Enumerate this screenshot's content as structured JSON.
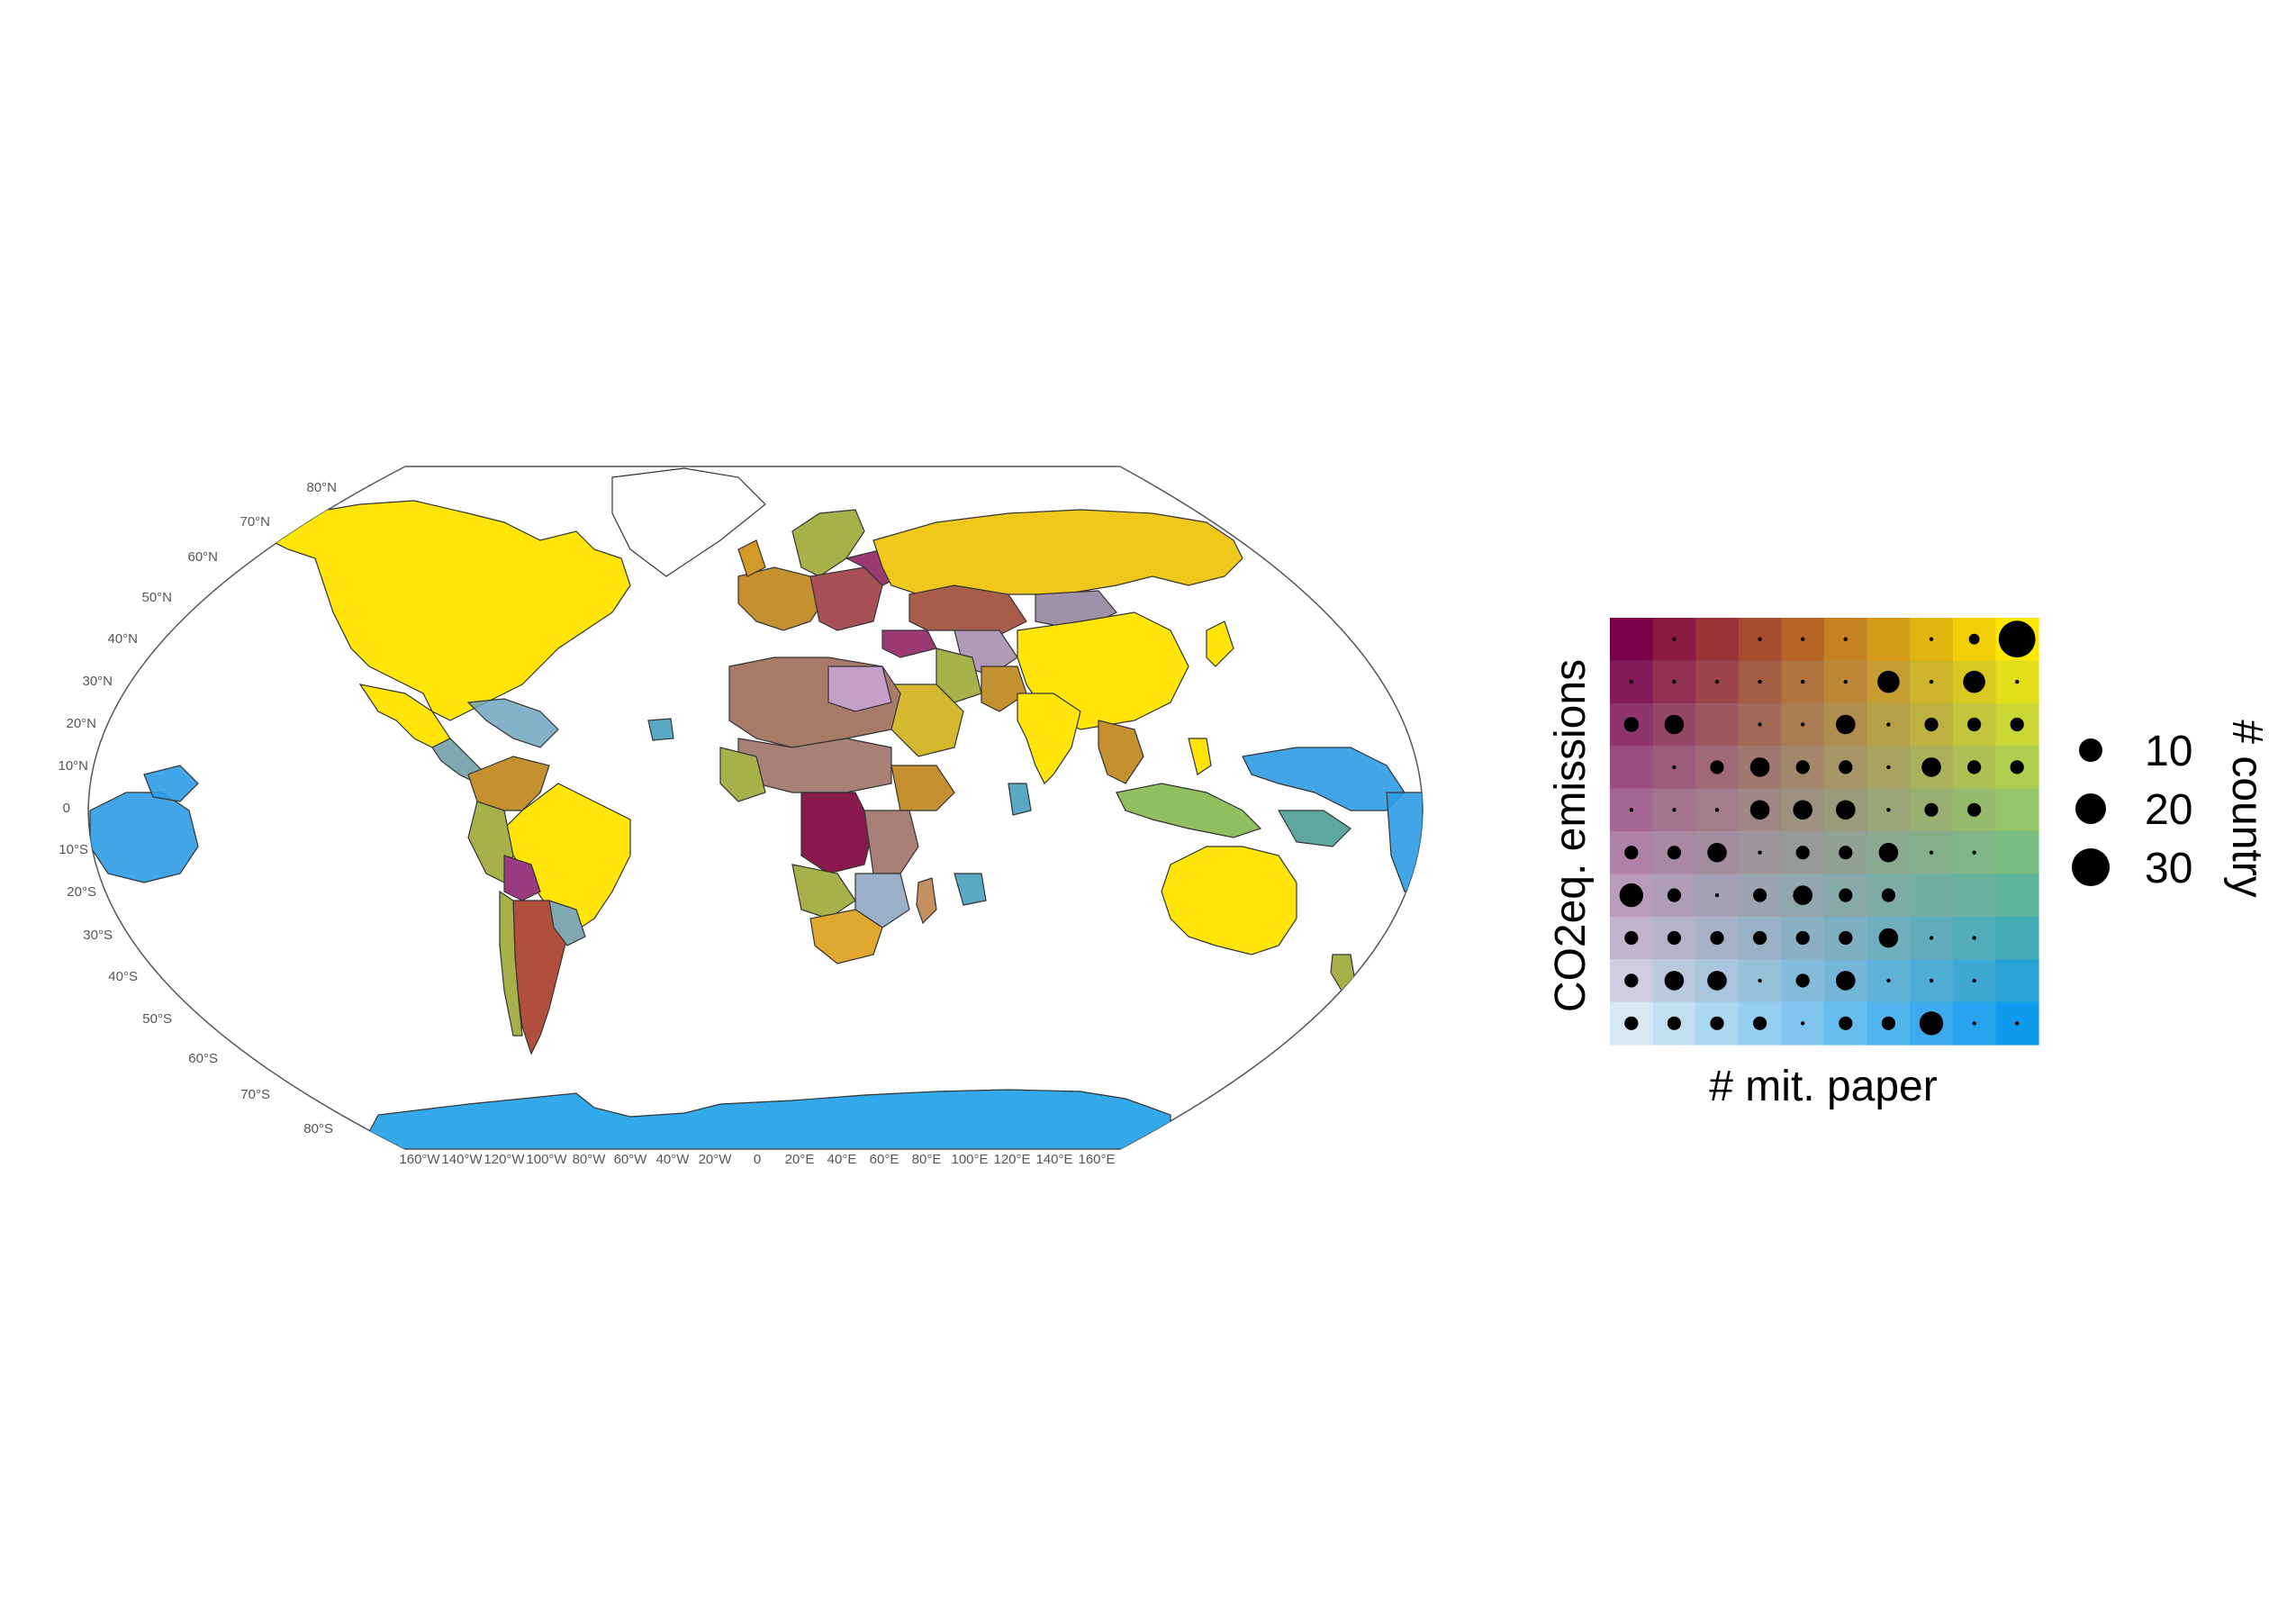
{
  "map": {
    "latitude_labels": [
      "80°N",
      "70°N",
      "60°N",
      "50°N",
      "40°N",
      "30°N",
      "20°N",
      "10°N",
      "0",
      "10°S",
      "20°S",
      "30°S",
      "40°S",
      "50°S",
      "60°S",
      "70°S",
      "80°S"
    ],
    "longitude_labels": [
      "160°W",
      "140°W",
      "120°W",
      "100°W",
      "80°W",
      "60°W",
      "40°W",
      "20°W",
      "0",
      "20°E",
      "40°E",
      "60°E",
      "80°E",
      "100°E",
      "120°E",
      "140°E",
      "160°E"
    ],
    "projection": "Robinson",
    "ocean_color": "#ffffff",
    "antarctica_color": "#33a9ea",
    "regions": [
      {
        "name": "North America",
        "color": "#ffe50a"
      },
      {
        "name": "Greenland",
        "color": "#ffffff"
      },
      {
        "name": "Russia",
        "color": "#f0c81c"
      },
      {
        "name": "China",
        "color": "#ffe50a"
      },
      {
        "name": "India",
        "color": "#ffe50a"
      },
      {
        "name": "Brazil",
        "color": "#ffe50a"
      },
      {
        "name": "Australia",
        "color": "#ffe50a"
      },
      {
        "name": "Argentina",
        "color": "#b24e3c"
      },
      {
        "name": "Kazakhstan",
        "color": "#a85c4a"
      },
      {
        "name": "DR Congo",
        "color": "#8a1a4e"
      },
      {
        "name": "Pacific Islands",
        "color": "#2c9be6"
      },
      {
        "name": "Indonesia",
        "color": "#8fbf5e"
      }
    ]
  },
  "legend": {
    "x_label": "# mit. paper",
    "y_label": "CO2eq. emissions",
    "size_title": "# country",
    "size_values": [
      10,
      20,
      30
    ],
    "corner_colors": {
      "top_left": "#7b0047",
      "top_right": "#ffe800",
      "bottom_left": "#d8e8f3",
      "bottom_right": "#0f9aec"
    }
  },
  "chart_data": {
    "type": "heatmap",
    "x_label": "# mit. paper",
    "y_label": "CO2eq. emissions",
    "size_title": "# country",
    "grid": [
      10,
      10
    ],
    "point_counts_rows_top_to_bottom": [
      [
        0,
        1,
        0,
        1,
        1,
        1,
        0,
        1,
        3,
        36
      ],
      [
        1,
        1,
        1,
        1,
        1,
        1,
        13,
        1,
        13,
        1
      ],
      [
        6,
        10,
        0,
        1,
        1,
        10,
        1,
        5,
        5,
        5
      ],
      [
        0,
        1,
        5,
        10,
        5,
        5,
        1,
        10,
        5,
        5
      ],
      [
        1,
        1,
        1,
        10,
        10,
        10,
        1,
        5,
        5,
        0
      ],
      [
        5,
        5,
        10,
        1,
        5,
        5,
        10,
        1,
        1,
        0
      ],
      [
        15,
        5,
        1,
        5,
        10,
        5,
        5,
        0,
        0,
        0
      ],
      [
        5,
        5,
        5,
        5,
        5,
        5,
        10,
        1,
        1,
        0
      ],
      [
        5,
        10,
        10,
        1,
        5,
        10,
        1,
        1,
        1,
        0
      ],
      [
        5,
        5,
        5,
        5,
        1,
        5,
        5,
        15,
        1,
        1
      ]
    ]
  }
}
